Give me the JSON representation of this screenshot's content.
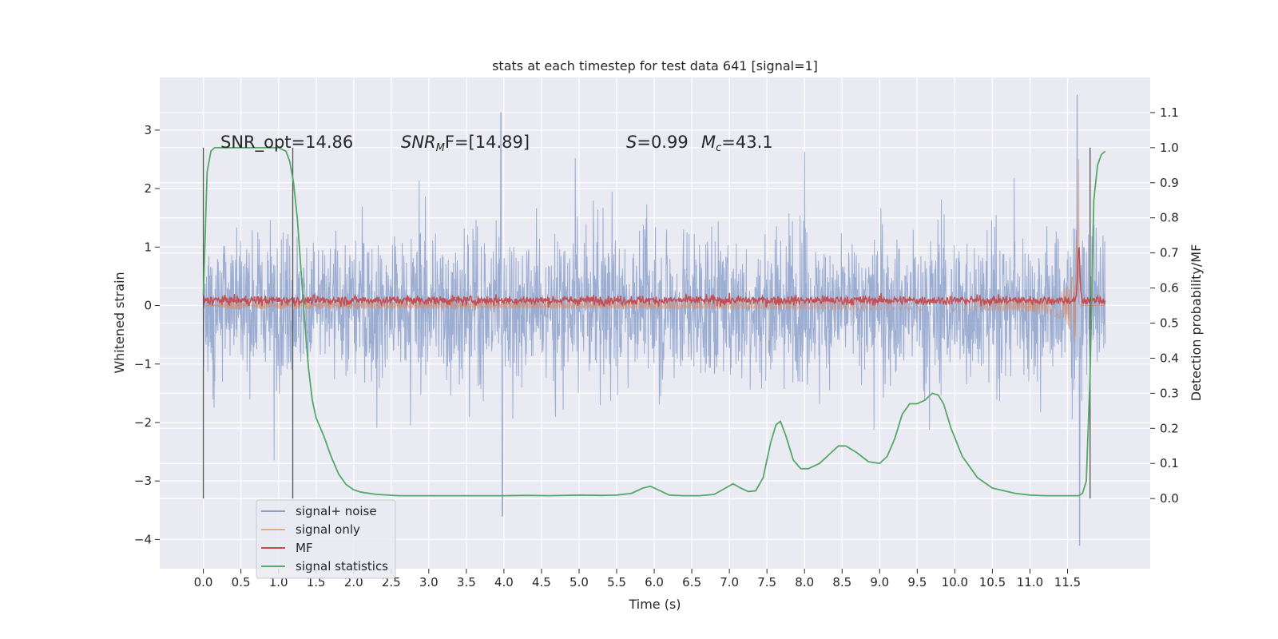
{
  "chart_data": {
    "type": "line",
    "title": "stats at each timestep for test data 641 [signal=1]",
    "xlabel": "Time (s)",
    "ylabel": "Whitened strain",
    "y2label": "Detection probability/MF",
    "xlim": [
      -0.58,
      12.6
    ],
    "ylim": [
      -4.5,
      3.9
    ],
    "y2lim": [
      -0.2,
      1.2
    ],
    "xticks": [
      "0.0",
      "0.5",
      "1.0",
      "1.5",
      "2.0",
      "2.5",
      "3.0",
      "3.5",
      "4.0",
      "4.5",
      "5.0",
      "5.5",
      "6.0",
      "6.5",
      "7.0",
      "7.5",
      "8.0",
      "8.5",
      "9.0",
      "9.5",
      "10.0",
      "10.5",
      "11.0",
      "11.5"
    ],
    "yticks": [
      "3",
      "2",
      "1",
      "0",
      "−1",
      "−2",
      "−3",
      "−4"
    ],
    "y2ticks": [
      "1.1",
      "1.0",
      "0.9",
      "0.8",
      "0.7",
      "0.6",
      "0.5",
      "0.4",
      "0.3",
      "0.2",
      "0.1",
      "0.0"
    ],
    "grid": true,
    "legend_location": "lower-left",
    "annotations": {
      "snr_opt": "SNR_opt=14.86",
      "snr_mf_main": "SNR",
      "snr_mf_sub": "M",
      "snr_mf_rest": "F=[14.89]",
      "s_sym": "S",
      "s_val": "=0.99",
      "mc_main": "M",
      "mc_sub": "c",
      "mc_val": "=43.1"
    },
    "vertical_markers_x": [
      0.0,
      1.19,
      11.8
    ],
    "series": [
      {
        "name": "signal+ noise",
        "color": "#4c72b0",
        "display": "noise band, amplitude approx 1.5 with peaks to 3.6 and -4.1"
      },
      {
        "name": "signal only",
        "color": "#dd8452",
        "display": "chirp growing near merger at 11.65 s, peak approx 3.1"
      },
      {
        "name": "MF",
        "color": "#c44e52",
        "display": "around 0.1 with spike to 1.0 near 11.65 s"
      },
      {
        "name": "signal statistics",
        "color": "#55a868",
        "axis": "right",
        "x": [
          0.0,
          0.05,
          0.1,
          0.15,
          0.2,
          0.3,
          0.5,
          0.8,
          1.0,
          1.1,
          1.15,
          1.2,
          1.25,
          1.3,
          1.35,
          1.4,
          1.45,
          1.5,
          1.6,
          1.7,
          1.8,
          1.9,
          2.0,
          2.1,
          2.3,
          2.6,
          3.0,
          3.5,
          4.0,
          4.3,
          4.6,
          5.0,
          5.3,
          5.5,
          5.7,
          5.85,
          5.95,
          6.05,
          6.2,
          6.4,
          6.6,
          6.8,
          6.95,
          7.05,
          7.15,
          7.25,
          7.35,
          7.45,
          7.55,
          7.62,
          7.68,
          7.75,
          7.85,
          7.95,
          8.05,
          8.2,
          8.35,
          8.45,
          8.55,
          8.7,
          8.85,
          9.0,
          9.1,
          9.2,
          9.3,
          9.4,
          9.5,
          9.6,
          9.7,
          9.78,
          9.85,
          9.95,
          10.1,
          10.3,
          10.5,
          10.8,
          11.0,
          11.2,
          11.4,
          11.5,
          11.55,
          11.6,
          11.65,
          11.7,
          11.75,
          11.8,
          11.85,
          11.9,
          11.95,
          12.0
        ],
        "values": [
          0.58,
          0.93,
          0.99,
          1.0,
          1.0,
          1.0,
          1.0,
          1.0,
          1.0,
          0.99,
          0.96,
          0.9,
          0.8,
          0.65,
          0.5,
          0.37,
          0.28,
          0.23,
          0.18,
          0.12,
          0.07,
          0.04,
          0.025,
          0.018,
          0.012,
          0.008,
          0.008,
          0.008,
          0.008,
          0.009,
          0.008,
          0.01,
          0.009,
          0.01,
          0.015,
          0.03,
          0.035,
          0.025,
          0.01,
          0.008,
          0.008,
          0.012,
          0.03,
          0.042,
          0.03,
          0.02,
          0.022,
          0.06,
          0.16,
          0.21,
          0.22,
          0.18,
          0.11,
          0.085,
          0.085,
          0.1,
          0.13,
          0.15,
          0.15,
          0.13,
          0.105,
          0.1,
          0.12,
          0.17,
          0.24,
          0.27,
          0.27,
          0.28,
          0.3,
          0.295,
          0.27,
          0.2,
          0.12,
          0.06,
          0.03,
          0.015,
          0.01,
          0.008,
          0.008,
          0.008,
          0.008,
          0.008,
          0.008,
          0.015,
          0.05,
          0.35,
          0.85,
          0.95,
          0.98,
          0.99
        ]
      }
    ]
  }
}
